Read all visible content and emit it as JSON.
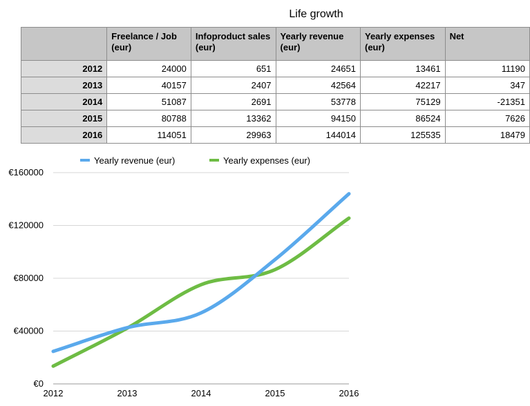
{
  "table": {
    "title": "Life growth",
    "headers": [
      "",
      "Freelance / Job (eur)",
      "Infoproduct sales (eur)",
      "Yearly revenue (eur)",
      "Yearly expenses (eur)",
      "Net"
    ],
    "rows": [
      [
        "2012",
        "24000",
        "651",
        "24651",
        "13461",
        "11190"
      ],
      [
        "2013",
        "40157",
        "2407",
        "42564",
        "42217",
        "347"
      ],
      [
        "2014",
        "51087",
        "2691",
        "53778",
        "75129",
        "-21351"
      ],
      [
        "2015",
        "80788",
        "13362",
        "94150",
        "86524",
        "7626"
      ],
      [
        "2016",
        "114051",
        "29963",
        "144014",
        "125535",
        "18479"
      ]
    ]
  },
  "chart_data": {
    "type": "line",
    "x": [
      2012,
      2013,
      2014,
      2015,
      2016
    ],
    "series": [
      {
        "name": "Yearly revenue (eur)",
        "color": "#5aa9ec",
        "values": [
          24651,
          42564,
          53778,
          94150,
          144014
        ]
      },
      {
        "name": "Yearly expenses (eur)",
        "color": "#6ebc44",
        "values": [
          13461,
          42217,
          75129,
          86524,
          125535
        ]
      }
    ],
    "y_ticks": [
      0,
      40000,
      80000,
      120000,
      160000
    ],
    "y_tick_labels": [
      "€0",
      "€40000",
      "€80000",
      "€120000",
      "€160000"
    ],
    "x_tick_labels": [
      "2012",
      "2013",
      "2014",
      "2015",
      "2016"
    ],
    "ylim": [
      0,
      160000
    ],
    "xlim": [
      2012,
      2016
    ],
    "grid": true,
    "grid_axis": "y",
    "grid_color": "#d7d7d7",
    "legend_position": "top"
  }
}
